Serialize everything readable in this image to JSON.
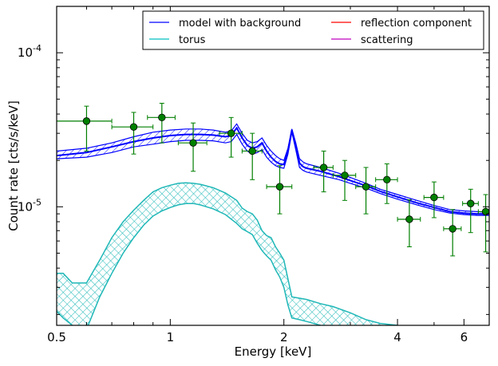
{
  "chart_data": {
    "type": "line",
    "xlabel": "Energy [keV]",
    "ylabel": "Count rate [cts/s/keV]",
    "xscale": "log",
    "yscale": "log",
    "xlim": [
      0.5,
      7.0
    ],
    "ylim": [
      1.7e-06,
      0.0002
    ],
    "x_ticks": [
      {
        "value": 0.5,
        "label": "0.5"
      },
      {
        "value": 1,
        "label": "1"
      },
      {
        "value": 2,
        "label": "2"
      },
      {
        "value": 4,
        "label": "4"
      },
      {
        "value": 6,
        "label": "6"
      }
    ],
    "y_ticks": [
      {
        "value": 0.0001,
        "label": "10^-4"
      },
      {
        "value": 1e-05,
        "label": "10^-5"
      }
    ],
    "legend": {
      "placement": "top-right",
      "columns": 2,
      "entries": [
        {
          "name": "model with background",
          "color": "#0000ff"
        },
        {
          "name": "reflection component",
          "color": "#ff0000"
        },
        {
          "name": "torus",
          "color": "#00bfbf"
        },
        {
          "name": "scattering",
          "color": "#bf00bf"
        }
      ]
    },
    "colors": {
      "model": "#0000ff",
      "torus": "#1fb7b7",
      "data": "#007f00",
      "data_marker": "#008000"
    },
    "data_points": [
      {
        "x": 0.6,
        "y": 3.6e-05,
        "xerr": [
          0.1,
          0.1
        ],
        "yerr": [
          1.3e-05,
          9e-06
        ]
      },
      {
        "x": 0.8,
        "y": 3.3e-05,
        "xerr": [
          0.1,
          0.1
        ],
        "yerr": [
          1.1e-05,
          8e-06
        ]
      },
      {
        "x": 0.95,
        "y": 3.8e-05,
        "xerr": [
          0.08,
          0.08
        ],
        "yerr": [
          1.2e-05,
          9e-06
        ]
      },
      {
        "x": 1.15,
        "y": 2.6e-05,
        "xerr": [
          0.1,
          0.1
        ],
        "yerr": [
          9e-06,
          9e-06
        ]
      },
      {
        "x": 1.45,
        "y": 3e-05,
        "xerr": [
          0.1,
          0.1
        ],
        "yerr": [
          9e-06,
          8e-06
        ]
      },
      {
        "x": 1.65,
        "y": 2.3e-05,
        "xerr": [
          0.1,
          0.1
        ],
        "yerr": [
          8e-06,
          7e-06
        ]
      },
      {
        "x": 1.95,
        "y": 1.35e-05,
        "xerr": [
          0.15,
          0.15
        ],
        "yerr": [
          4.5e-06,
          5e-06
        ]
      },
      {
        "x": 2.55,
        "y": 1.8e-05,
        "xerr": [
          0.15,
          0.15
        ],
        "yerr": [
          5.5e-06,
          5e-06
        ]
      },
      {
        "x": 2.9,
        "y": 1.6e-05,
        "xerr": [
          0.2,
          0.2
        ],
        "yerr": [
          5e-06,
          4e-06
        ]
      },
      {
        "x": 3.3,
        "y": 1.35e-05,
        "xerr": [
          0.2,
          0.2
        ],
        "yerr": [
          4.5e-06,
          4.5e-06
        ]
      },
      {
        "x": 3.75,
        "y": 1.5e-05,
        "xerr": [
          0.25,
          0.25
        ],
        "yerr": [
          4.5e-06,
          4e-06
        ]
      },
      {
        "x": 4.3,
        "y": 8.3e-06,
        "xerr": [
          0.3,
          0.3
        ],
        "yerr": [
          2.8e-06,
          2.8e-06
        ]
      },
      {
        "x": 5.0,
        "y": 1.15e-05,
        "xerr": [
          0.3,
          0.3
        ],
        "yerr": [
          3e-06,
          3e-06
        ]
      },
      {
        "x": 5.6,
        "y": 7.2e-06,
        "xerr": [
          0.3,
          0.3
        ],
        "yerr": [
          2.4e-06,
          2.4e-06
        ]
      },
      {
        "x": 6.25,
        "y": 1.05e-05,
        "xerr": [
          0.3,
          0.3
        ],
        "yerr": [
          3.7e-06,
          2.5e-06
        ]
      },
      {
        "x": 6.85,
        "y": 9.3e-06,
        "xerr": [
          0.3,
          0.3
        ],
        "yerr": [
          4.2e-06,
          2.7e-06
        ]
      }
    ],
    "series": [
      {
        "name": "model with background",
        "x": [
          0.5,
          0.6,
          0.7,
          0.8,
          0.9,
          1.0,
          1.1,
          1.2,
          1.3,
          1.4,
          1.45,
          1.5,
          1.55,
          1.6,
          1.65,
          1.7,
          1.75,
          1.8,
          1.85,
          1.9,
          1.95,
          2.0,
          2.05,
          2.1,
          2.15,
          2.2,
          2.25,
          2.3,
          2.5,
          2.8,
          3.0,
          3.3,
          3.6,
          4.0,
          4.5,
          5.0,
          5.5,
          6.0,
          6.5,
          7.0
        ],
        "upper": [
          2.3e-05,
          2.4e-05,
          2.6e-05,
          2.85e-05,
          3.05e-05,
          3.15e-05,
          3.2e-05,
          3.2e-05,
          3.15e-05,
          3.05e-05,
          3.1e-05,
          3.45e-05,
          3e-05,
          2.7e-05,
          2.6e-05,
          2.65e-05,
          2.8e-05,
          2.5e-05,
          2.3e-05,
          2.15e-05,
          2.05e-05,
          2e-05,
          2.4e-05,
          3.2e-05,
          2.6e-05,
          2.05e-05,
          1.95e-05,
          1.9e-05,
          1.8e-05,
          1.65e-05,
          1.55e-05,
          1.42e-05,
          1.3e-05,
          1.2e-05,
          1.1e-05,
          1.02e-05,
          9.6e-06,
          9.4e-06,
          9.3e-06,
          9.2e-06
        ],
        "model": [
          2.15e-05,
          2.25e-05,
          2.45e-05,
          2.65e-05,
          2.8e-05,
          2.9e-05,
          2.95e-05,
          2.95e-05,
          2.92e-05,
          2.85e-05,
          2.9e-05,
          3.25e-05,
          2.8e-05,
          2.5e-05,
          2.4e-05,
          2.45e-05,
          2.6e-05,
          2.3e-05,
          2.1e-05,
          1.97e-05,
          1.9e-05,
          1.88e-05,
          2.3e-05,
          3.15e-05,
          2.5e-05,
          1.92e-05,
          1.82e-05,
          1.78e-05,
          1.7e-05,
          1.57e-05,
          1.48e-05,
          1.37e-05,
          1.26e-05,
          1.16e-05,
          1.06e-05,
          9.9e-06,
          9.3e-06,
          9.1e-06,
          9e-06,
          9e-06
        ],
        "lower": [
          2.05e-05,
          2.1e-05,
          2.25e-05,
          2.45e-05,
          2.55e-05,
          2.65e-05,
          2.7e-05,
          2.7e-05,
          2.68e-05,
          2.6e-05,
          2.65e-05,
          2.95e-05,
          2.55e-05,
          2.3e-05,
          2.2e-05,
          2.25e-05,
          2.35e-05,
          2.1e-05,
          1.95e-05,
          1.85e-05,
          1.8e-05,
          1.78e-05,
          2.2e-05,
          3.05e-05,
          2.35e-05,
          1.8e-05,
          1.72e-05,
          1.68e-05,
          1.6e-05,
          1.5e-05,
          1.42e-05,
          1.32e-05,
          1.22e-05,
          1.12e-05,
          1.03e-05,
          9.6e-06,
          9.1e-06,
          8.9e-06,
          8.8e-06,
          8.8e-06
        ]
      },
      {
        "name": "torus",
        "x": [
          0.5,
          0.52,
          0.55,
          0.6,
          0.65,
          0.7,
          0.75,
          0.8,
          0.85,
          0.9,
          0.95,
          1.0,
          1.05,
          1.1,
          1.15,
          1.2,
          1.3,
          1.4,
          1.5,
          1.55,
          1.6,
          1.65,
          1.7,
          1.75,
          1.8,
          1.85,
          1.9,
          1.95,
          2.0,
          2.05,
          2.1,
          2.2,
          2.3,
          2.5,
          2.7,
          3.0,
          3.3,
          3.6,
          4.0
        ],
        "upper": [
          3.7e-06,
          3.7e-06,
          3.2e-06,
          3.2e-06,
          4.5e-06,
          6.3e-06,
          8e-06,
          9.5e-06,
          1.1e-05,
          1.25e-05,
          1.33e-05,
          1.38e-05,
          1.42e-05,
          1.43e-05,
          1.42e-05,
          1.4e-05,
          1.33e-05,
          1.23e-05,
          1.1e-05,
          9.8e-06,
          9.3e-06,
          9e-06,
          8.2e-06,
          7e-06,
          6.5e-06,
          6.3e-06,
          5.5e-06,
          5e-06,
          4.5e-06,
          3.4e-06,
          2.6e-06,
          2.55e-06,
          2.5e-06,
          2.35e-06,
          2.25e-06,
          2.05e-06,
          1.85e-06,
          1.75e-06,
          1.7e-06
        ],
        "lower": [
          2.1e-06,
          1.9e-06,
          1.7e-06,
          1.6e-06,
          2.6e-06,
          3.7e-06,
          5e-06,
          6.3e-06,
          7.6e-06,
          8.7e-06,
          9.4e-06,
          9.9e-06,
          1.03e-05,
          1.05e-05,
          1.05e-05,
          1.03e-05,
          9.7e-06,
          8.9e-06,
          7.8e-06,
          7.2e-06,
          6.9e-06,
          6.6e-06,
          5.8e-06,
          5.2e-06,
          4.8e-06,
          4.5e-06,
          3.9e-06,
          3.5e-06,
          3e-06,
          2.3e-06,
          1.9e-06,
          1.85e-06,
          1.8e-06,
          1.7e-06,
          1.6e-06,
          1.5e-06,
          1.4e-06,
          1.35e-06,
          1.3e-06
        ]
      }
    ]
  }
}
